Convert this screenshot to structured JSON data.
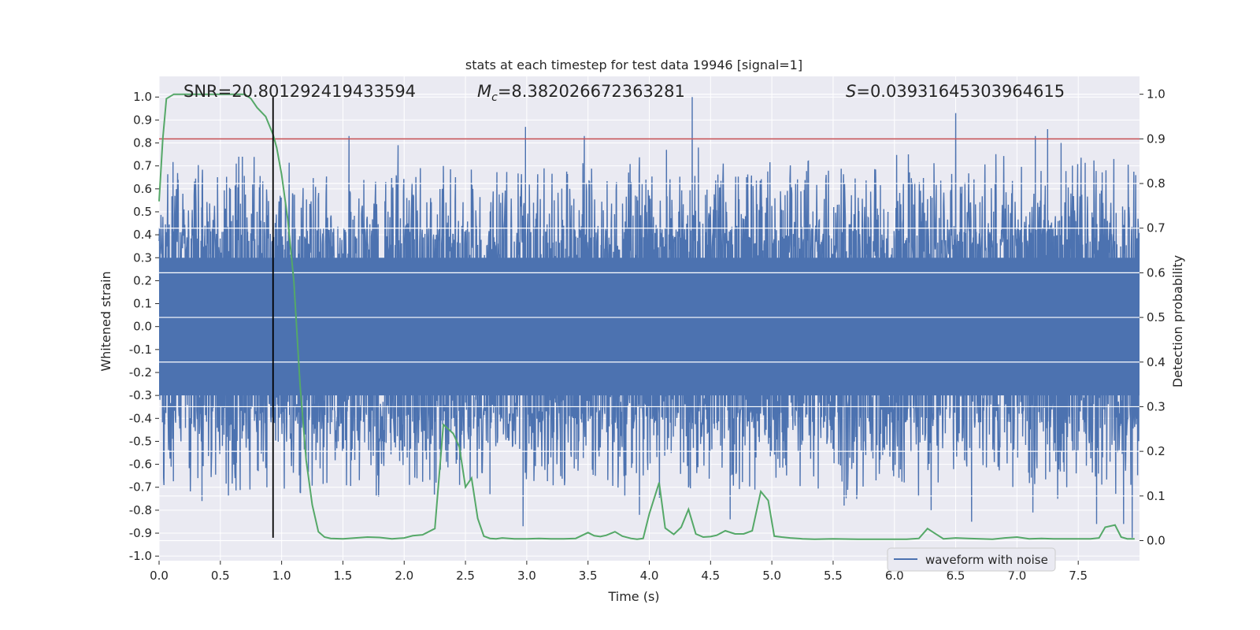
{
  "chart_data": {
    "type": "line",
    "title": "stats at each timestep for test data 19946 [signal=1]",
    "xlabel": "Time (s)",
    "ylabel_left": "Whitened strain",
    "ylabel_right": "Detection probability",
    "xlim": [
      0.0,
      8.0
    ],
    "ylim_left": [
      -1.02,
      1.09
    ],
    "ylim_right": [
      -0.045,
      1.04
    ],
    "x_ticks": [
      "0.0",
      "0.5",
      "1.0",
      "1.5",
      "2.0",
      "2.5",
      "3.0",
      "3.5",
      "4.0",
      "4.5",
      "5.0",
      "5.5",
      "6.0",
      "6.5",
      "7.0",
      "7.5"
    ],
    "x_tick_values": [
      0,
      0.5,
      1,
      1.5,
      2,
      2.5,
      3,
      3.5,
      4,
      4.5,
      5,
      5.5,
      6,
      6.5,
      7,
      7.5
    ],
    "y_ticks_left": [
      "-1.0",
      "-0.9",
      "-0.8",
      "-0.7",
      "-0.6",
      "-0.5",
      "-0.4",
      "-0.3",
      "-0.2",
      "-0.1",
      "0.0",
      "0.1",
      "0.2",
      "0.3",
      "0.4",
      "0.5",
      "0.6",
      "0.7",
      "0.8",
      "0.9",
      "1.0"
    ],
    "y_tick_values_left": [
      -1,
      -0.9,
      -0.8,
      -0.7,
      -0.6,
      -0.5,
      -0.4,
      -0.3,
      -0.2,
      -0.1,
      0,
      0.1,
      0.2,
      0.3,
      0.4,
      0.5,
      0.6,
      0.7,
      0.8,
      0.9,
      1.0
    ],
    "y_ticks_right": [
      "0.0",
      "0.1",
      "0.2",
      "0.3",
      "0.4",
      "0.5",
      "0.6",
      "0.7",
      "0.8",
      "0.9",
      "1.0"
    ],
    "y_tick_values_right": [
      0,
      0.1,
      0.2,
      0.3,
      0.4,
      0.5,
      0.6,
      0.7,
      0.8,
      0.9,
      1.0
    ],
    "annotations": {
      "snr": "SNR=20.801292419433594",
      "mc_prefix": "M",
      "mc_sub": "c",
      "mc_value": "=8.382026672363281",
      "s_prefix": "S",
      "s_value": "=0.03931645303964615"
    },
    "threshold": {
      "value_right": 0.9,
      "color": "#c44e52"
    },
    "detection_time": {
      "x": 0.93,
      "y_range": [
        -0.92,
        1.0
      ],
      "color": "#000000"
    },
    "spikes": [
      {
        "x": 0.155,
        "y": 0.64
      },
      {
        "x": 0.63,
        "y": 0.71
      },
      {
        "x": 0.65,
        "y": 0.74
      },
      {
        "x": 0.68,
        "y": 0.74
      },
      {
        "x": 1.55,
        "y": 0.83
      },
      {
        "x": 1.95,
        "y": 0.79
      },
      {
        "x": 2.99,
        "y": 0.87
      },
      {
        "x": 3.47,
        "y": 0.83
      },
      {
        "x": 4.35,
        "y": 1.0
      },
      {
        "x": 4.14,
        "y": 0.77
      },
      {
        "x": 4.4,
        "y": 0.78
      },
      {
        "x": 6.5,
        "y": 0.93
      },
      {
        "x": 7.25,
        "y": 0.86
      },
      {
        "x": 7.36,
        "y": 0.8
      },
      {
        "x": 7.15,
        "y": 0.83
      },
      {
        "x": 2.32,
        "y": 0.7
      },
      {
        "x": 0.35,
        "y": -0.76
      },
      {
        "x": 0.88,
        "y": -0.7
      },
      {
        "x": 2.97,
        "y": -0.87
      },
      {
        "x": 3.92,
        "y": -0.82
      },
      {
        "x": 4.66,
        "y": -0.84
      },
      {
        "x": 5.59,
        "y": -0.78
      },
      {
        "x": 6.3,
        "y": -0.8
      },
      {
        "x": 6.63,
        "y": -0.85
      },
      {
        "x": 7.13,
        "y": -0.81
      },
      {
        "x": 7.65,
        "y": -0.86
      },
      {
        "x": 7.87,
        "y": -0.86
      },
      {
        "x": 7.94,
        "y": -0.92
      },
      {
        "x": 2.26,
        "y": -0.68
      },
      {
        "x": 2.7,
        "y": -0.73
      },
      {
        "x": 3.8,
        "y": -0.74
      },
      {
        "x": 0.62,
        "y": -0.66
      },
      {
        "x": 1.2,
        "y": -0.58
      },
      {
        "x": 1.45,
        "y": -0.53
      },
      {
        "x": 5.85,
        "y": -0.67
      },
      {
        "x": 4.32,
        "y": -0.7
      }
    ],
    "series": [
      {
        "name": "waveform with noise",
        "axis": "left",
        "color": "#4c72b0",
        "core_amplitude": 0.3,
        "envelope_max": 0.6
      },
      {
        "name": "detection probability",
        "axis": "right",
        "color": "#55a868",
        "x": [
          0.0,
          0.03,
          0.06,
          0.12,
          0.2,
          0.3,
          0.4,
          0.5,
          0.6,
          0.7,
          0.75,
          0.8,
          0.87,
          0.93,
          0.96,
          1.0,
          1.05,
          1.1,
          1.15,
          1.2,
          1.25,
          1.3,
          1.35,
          1.4,
          1.5,
          1.6,
          1.7,
          1.8,
          1.9,
          2.0,
          2.07,
          2.15,
          2.25,
          2.32,
          2.4,
          2.45,
          2.5,
          2.55,
          2.6,
          2.65,
          2.7,
          2.75,
          2.8,
          2.9,
          3.0,
          3.1,
          3.2,
          3.3,
          3.4,
          3.5,
          3.55,
          3.6,
          3.65,
          3.72,
          3.78,
          3.85,
          3.9,
          3.95,
          4.0,
          4.08,
          4.13,
          4.2,
          4.26,
          4.32,
          4.38,
          4.44,
          4.5,
          4.55,
          4.62,
          4.7,
          4.77,
          4.84,
          4.91,
          4.97,
          5.02,
          5.08,
          5.15,
          5.25,
          5.35,
          5.5,
          5.7,
          5.9,
          6.0,
          6.1,
          6.2,
          6.27,
          6.32,
          6.4,
          6.5,
          6.6,
          6.7,
          6.8,
          6.9,
          7.0,
          7.1,
          7.2,
          7.3,
          7.5,
          7.6,
          7.67,
          7.72,
          7.8,
          7.85,
          7.9,
          7.96
        ],
        "values": [
          0.76,
          0.9,
          0.99,
          1.0,
          1.0,
          1.0,
          1.0,
          1.0,
          1.0,
          1.0,
          0.99,
          0.97,
          0.95,
          0.91,
          0.88,
          0.82,
          0.72,
          0.58,
          0.35,
          0.18,
          0.08,
          0.02,
          0.008,
          0.005,
          0.004,
          0.006,
          0.008,
          0.007,
          0.004,
          0.006,
          0.011,
          0.013,
          0.027,
          0.26,
          0.24,
          0.21,
          0.12,
          0.14,
          0.05,
          0.01,
          0.005,
          0.004,
          0.006,
          0.004,
          0.004,
          0.005,
          0.004,
          0.004,
          0.005,
          0.018,
          0.011,
          0.009,
          0.012,
          0.02,
          0.01,
          0.005,
          0.003,
          0.005,
          0.06,
          0.13,
          0.028,
          0.014,
          0.03,
          0.07,
          0.015,
          0.008,
          0.009,
          0.012,
          0.022,
          0.015,
          0.015,
          0.022,
          0.11,
          0.09,
          0.01,
          0.008,
          0.006,
          0.004,
          0.003,
          0.004,
          0.003,
          0.003,
          0.003,
          0.003,
          0.005,
          0.027,
          0.018,
          0.004,
          0.006,
          0.005,
          0.004,
          0.003,
          0.006,
          0.008,
          0.004,
          0.005,
          0.004,
          0.004,
          0.004,
          0.006,
          0.03,
          0.035,
          0.008,
          0.004,
          0.004
        ]
      }
    ],
    "legend": {
      "placement": "bottom-right",
      "label": "waveform with noise"
    },
    "grid": true,
    "background": "#eaeaf2"
  }
}
